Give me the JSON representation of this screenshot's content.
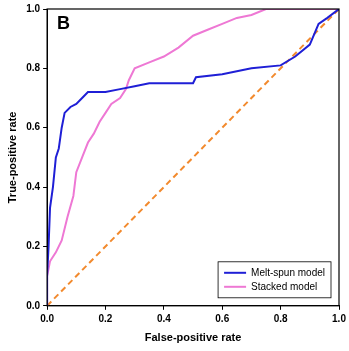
{
  "chart_data": {
    "type": "line",
    "annotations": [
      "B"
    ],
    "x_label": "False-positive rate",
    "y_label": "True-positive rate",
    "xlim": [
      0,
      1
    ],
    "ylim": [
      0,
      1
    ],
    "xticks": [
      {
        "value": 0,
        "label": "0.0"
      },
      {
        "value": 0.2,
        "label": "0.2"
      },
      {
        "value": 0.4,
        "label": "0.4"
      },
      {
        "value": 0.6,
        "label": "0.6"
      },
      {
        "value": 0.8,
        "label": "0.8"
      },
      {
        "value": 1,
        "label": "1.0"
      }
    ],
    "yticks": [
      {
        "value": 0,
        "label": "0.0"
      },
      {
        "value": 0.2,
        "label": "0.2"
      },
      {
        "value": 0.4,
        "label": "0.4"
      },
      {
        "value": 0.6,
        "label": "0.6"
      },
      {
        "value": 0.8,
        "label": "0.8"
      },
      {
        "value": 1,
        "label": "1.0"
      }
    ],
    "grid": false,
    "legend": "lower right",
    "series": [
      {
        "name": "Melt-spun model",
        "color": "#1f1fd6",
        "line_style": "solid",
        "x": [
          0,
          0,
          0.005,
          0.01,
          0.02,
          0.03,
          0.04,
          0.05,
          0.06,
          0.08,
          0.1,
          0.12,
          0.14,
          0.2,
          0.25,
          0.3,
          0.35,
          0.5,
          0.51,
          0.6,
          0.7,
          0.8,
          0.85,
          0.9,
          0.93,
          0.96,
          1
        ],
        "values": [
          0,
          0.1,
          0.2,
          0.33,
          0.4,
          0.5,
          0.53,
          0.6,
          0.65,
          0.67,
          0.68,
          0.7,
          0.72,
          0.72,
          0.73,
          0.74,
          0.75,
          0.75,
          0.77,
          0.78,
          0.8,
          0.81,
          0.84,
          0.88,
          0.95,
          0.97,
          1
        ]
      },
      {
        "name": "Stacked model",
        "color": "#ee78d4",
        "line_style": "solid",
        "x": [
          0,
          0,
          0.01,
          0.03,
          0.05,
          0.07,
          0.09,
          0.1,
          0.12,
          0.14,
          0.16,
          0.18,
          0.2,
          0.22,
          0.25,
          0.27,
          0.28,
          0.3,
          0.35,
          0.4,
          0.45,
          0.5,
          0.55,
          0.6,
          0.65,
          0.7,
          0.75,
          0.8,
          1
        ],
        "values": [
          0,
          0.1,
          0.15,
          0.18,
          0.22,
          0.3,
          0.37,
          0.45,
          0.5,
          0.55,
          0.58,
          0.62,
          0.65,
          0.68,
          0.7,
          0.73,
          0.76,
          0.8,
          0.82,
          0.84,
          0.87,
          0.91,
          0.93,
          0.95,
          0.97,
          0.98,
          1,
          1,
          1
        ]
      },
      {
        "color": "#f28a2e",
        "line_style": "dashed",
        "x": [
          0,
          1
        ],
        "values": [
          0,
          1
        ]
      }
    ]
  }
}
